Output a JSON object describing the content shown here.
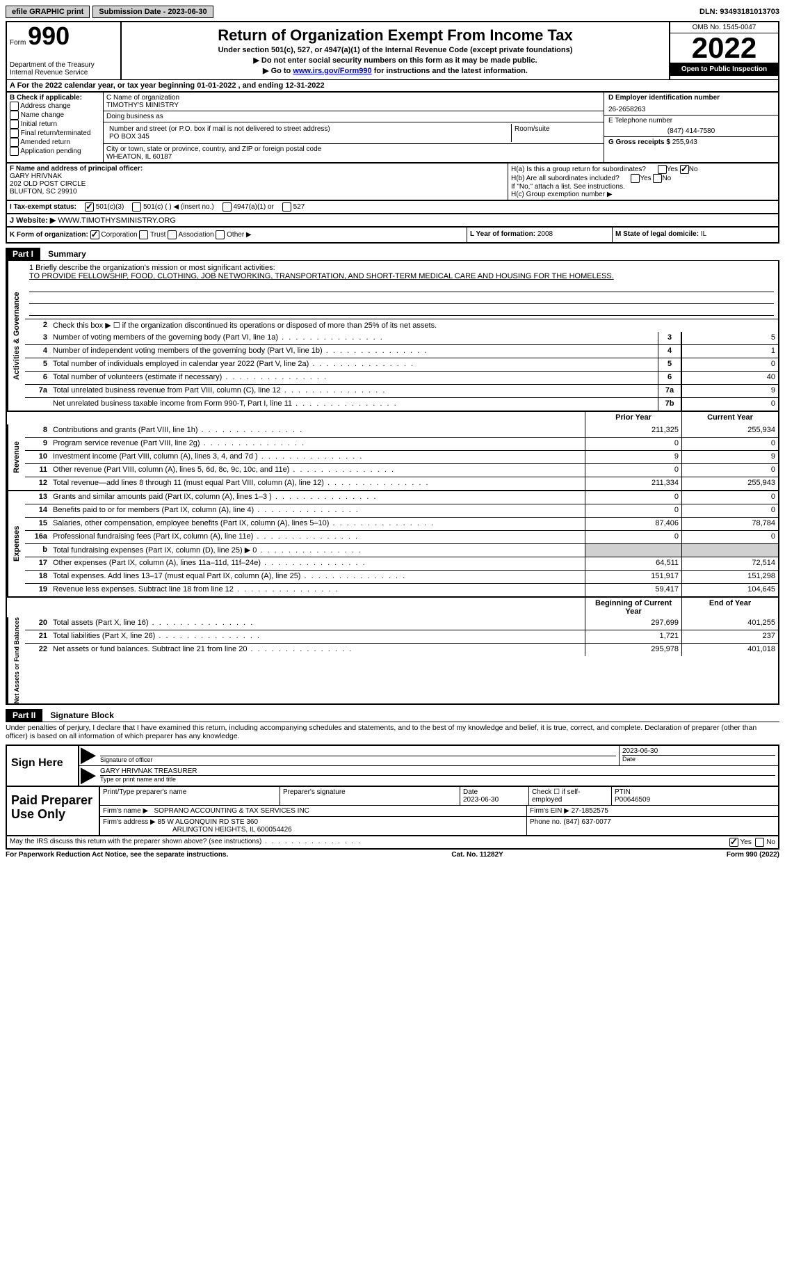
{
  "topbar": {
    "efile": "efile GRAPHIC print",
    "submission_label": "Submission Date - 2023-06-30",
    "dln_label": "DLN: 93493181013703"
  },
  "header": {
    "form_label": "Form",
    "form_num": "990",
    "dept": "Department of the Treasury",
    "irs": "Internal Revenue Service",
    "title": "Return of Organization Exempt From Income Tax",
    "subtitle": "Under section 501(c), 527, or 4947(a)(1) of the Internal Revenue Code (except private foundations)",
    "note1": "▶ Do not enter social security numbers on this form as it may be made public.",
    "note2_pre": "▶ Go to ",
    "note2_link": "www.irs.gov/Form990",
    "note2_post": " for instructions and the latest information.",
    "omb": "OMB No. 1545-0047",
    "year": "2022",
    "pub": "Open to Public Inspection"
  },
  "rowA": "A For the 2022 calendar year, or tax year beginning 01-01-2022    , and ending 12-31-2022",
  "colB": {
    "title": "B Check if applicable:",
    "items": [
      "Address change",
      "Name change",
      "Initial return",
      "Final return/terminated",
      "Amended return",
      "Application pending"
    ]
  },
  "colC": {
    "name_label": "C Name of organization",
    "name": "TIMOTHY'S MINISTRY",
    "dba_label": "Doing business as",
    "dba": "",
    "street_label": "Number and street (or P.O. box if mail is not delivered to street address)",
    "room_label": "Room/suite",
    "street": "PO BOX 345",
    "city_label": "City or town, state or province, country, and ZIP or foreign postal code",
    "city": "WHEATON, IL  60187"
  },
  "colD": {
    "ein_label": "D Employer identification number",
    "ein": "26-2658263",
    "phone_label": "E Telephone number",
    "phone": "(847) 414-7580",
    "gross_label": "G Gross receipts $",
    "gross": "255,943"
  },
  "rowF": {
    "label": "F  Name and address of principal officer:",
    "name": "GARY HRIVNAK",
    "addr1": "202 OLD POST CIRCLE",
    "addr2": "BLUFTON, SC  29910"
  },
  "rowH": {
    "ha": "H(a)  Is this a group return for subordinates?",
    "hb": "H(b)  Are all subordinates included?",
    "hb_note": "If \"No,\" attach a list. See instructions.",
    "hc": "H(c)  Group exemption number ▶",
    "yes": "Yes",
    "no": "No"
  },
  "rowI": {
    "label": "I    Tax-exempt status:",
    "o1": "501(c)(3)",
    "o2": "501(c) (  ) ◀ (insert no.)",
    "o3": "4947(a)(1) or",
    "o4": "527"
  },
  "rowJ": {
    "label": "J   Website: ▶",
    "value": "WWW.TIMOTHYSMINISTRY.ORG"
  },
  "rowK": {
    "label": "K Form of organization:",
    "o1": "Corporation",
    "o2": "Trust",
    "o3": "Association",
    "o4": "Other ▶",
    "l_label": "L Year of formation:",
    "l_val": "2008",
    "m_label": "M State of legal domicile:",
    "m_val": "IL"
  },
  "part1": {
    "tag": "Part I",
    "title": "Summary",
    "mission_label": "1   Briefly describe the organization's mission or most significant activities:",
    "mission": "TO PROVIDE FELLOWSHIP, FOOD, CLOTHING, JOB NETWORKING, TRANSPORTATION, AND SHORT-TERM MEDICAL CARE AND HOUSING FOR THE HOMELESS.",
    "line2": "Check this box ▶ ☐  if the organization discontinued its operations or disposed of more than 25% of its net assets.",
    "side_ag": "Activities & Governance",
    "side_rev": "Revenue",
    "side_exp": "Expenses",
    "side_na": "Net Assets or Fund Balances",
    "py": "Prior Year",
    "cy": "Current Year",
    "bcy": "Beginning of Current Year",
    "eoy": "End of Year",
    "lines_top": [
      {
        "n": "3",
        "d": "Number of voting members of the governing body (Part VI, line 1a)",
        "b": "3",
        "v": "5"
      },
      {
        "n": "4",
        "d": "Number of independent voting members of the governing body (Part VI, line 1b)",
        "b": "4",
        "v": "1"
      },
      {
        "n": "5",
        "d": "Total number of individuals employed in calendar year 2022 (Part V, line 2a)",
        "b": "5",
        "v": "0"
      },
      {
        "n": "6",
        "d": "Total number of volunteers (estimate if necessary)",
        "b": "6",
        "v": "40"
      },
      {
        "n": "7a",
        "d": "Total unrelated business revenue from Part VIII, column (C), line 12",
        "b": "7a",
        "v": "9"
      },
      {
        "n": "",
        "d": "Net unrelated business taxable income from Form 990-T, Part I, line 11",
        "b": "7b",
        "v": "0"
      }
    ],
    "lines_rev": [
      {
        "n": "8",
        "d": "Contributions and grants (Part VIII, line 1h)",
        "p": "211,325",
        "c": "255,934"
      },
      {
        "n": "9",
        "d": "Program service revenue (Part VIII, line 2g)",
        "p": "0",
        "c": "0"
      },
      {
        "n": "10",
        "d": "Investment income (Part VIII, column (A), lines 3, 4, and 7d )",
        "p": "9",
        "c": "9"
      },
      {
        "n": "11",
        "d": "Other revenue (Part VIII, column (A), lines 5, 6d, 8c, 9c, 10c, and 11e)",
        "p": "0",
        "c": "0"
      },
      {
        "n": "12",
        "d": "Total revenue—add lines 8 through 11 (must equal Part VIII, column (A), line 12)",
        "p": "211,334",
        "c": "255,943"
      }
    ],
    "lines_exp": [
      {
        "n": "13",
        "d": "Grants and similar amounts paid (Part IX, column (A), lines 1–3 )",
        "p": "0",
        "c": "0"
      },
      {
        "n": "14",
        "d": "Benefits paid to or for members (Part IX, column (A), line 4)",
        "p": "0",
        "c": "0"
      },
      {
        "n": "15",
        "d": "Salaries, other compensation, employee benefits (Part IX, column (A), lines 5–10)",
        "p": "87,406",
        "c": "78,784"
      },
      {
        "n": "16a",
        "d": "Professional fundraising fees (Part IX, column (A), line 11e)",
        "p": "0",
        "c": "0"
      },
      {
        "n": "b",
        "d": "Total fundraising expenses (Part IX, column (D), line 25) ▶ 0",
        "p": "",
        "c": "",
        "gray": true
      },
      {
        "n": "17",
        "d": "Other expenses (Part IX, column (A), lines 11a–11d, 11f–24e)",
        "p": "64,511",
        "c": "72,514"
      },
      {
        "n": "18",
        "d": "Total expenses. Add lines 13–17 (must equal Part IX, column (A), line 25)",
        "p": "151,917",
        "c": "151,298"
      },
      {
        "n": "19",
        "d": "Revenue less expenses. Subtract line 18 from line 12",
        "p": "59,417",
        "c": "104,645"
      }
    ],
    "lines_na": [
      {
        "n": "20",
        "d": "Total assets (Part X, line 16)",
        "p": "297,699",
        "c": "401,255"
      },
      {
        "n": "21",
        "d": "Total liabilities (Part X, line 26)",
        "p": "1,721",
        "c": "237"
      },
      {
        "n": "22",
        "d": "Net assets or fund balances. Subtract line 21 from line 20",
        "p": "295,978",
        "c": "401,018"
      }
    ]
  },
  "part2": {
    "tag": "Part II",
    "title": "Signature Block",
    "decl": "Under penalties of perjury, I declare that I have examined this return, including accompanying schedules and statements, and to the best of my knowledge and belief, it is true, correct, and complete. Declaration of preparer (other than officer) is based on all information of which preparer has any knowledge."
  },
  "sign": {
    "label": "Sign Here",
    "sig_label": "Signature of officer",
    "date": "2023-06-30",
    "date_label": "Date",
    "name": "GARY HRIVNAK  TREASURER",
    "name_label": "Type or print name and title"
  },
  "prep": {
    "label": "Paid Preparer Use Only",
    "c1": "Print/Type preparer's name",
    "c2": "Preparer's signature",
    "c3_label": "Date",
    "c3": "2023-06-30",
    "c4": "Check ☐ if self-employed",
    "c5_label": "PTIN",
    "c5": "P00646509",
    "firm_label": "Firm's name    ▶",
    "firm": "SOPRANO ACCOUNTING & TAX SERVICES INC",
    "ein_label": "Firm's EIN ▶",
    "ein": "27-1852575",
    "addr_label": "Firm's address ▶",
    "addr1": "85 W ALGONQUIN RD STE 360",
    "addr2": "ARLINGTON HEIGHTS, IL  600054426",
    "phone_label": "Phone no.",
    "phone": "(847) 637-0077"
  },
  "footer": {
    "discuss": "May the IRS discuss this return with the preparer shown above? (see instructions)",
    "yes": "Yes",
    "no": "No",
    "pra": "For Paperwork Reduction Act Notice, see the separate instructions.",
    "cat": "Cat. No. 11282Y",
    "form": "Form 990 (2022)"
  }
}
